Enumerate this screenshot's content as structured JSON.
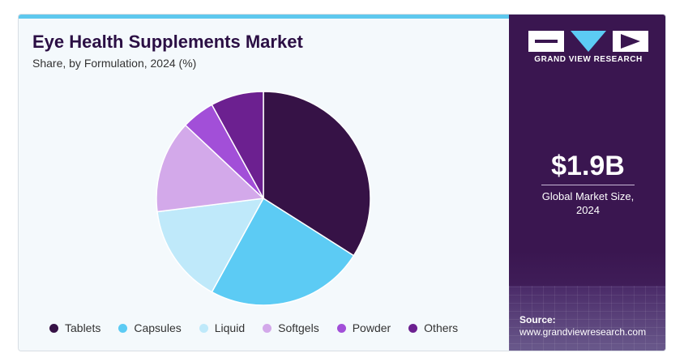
{
  "header": {
    "title": "Eye Health Supplements Market",
    "subtitle": "Share, by Formulation, 2024 (%)"
  },
  "chart_data": {
    "type": "pie",
    "title": "Eye Health Supplements Market",
    "subtitle": "Share, by Formulation, 2024 (%)",
    "categories": [
      "Tablets",
      "Capsules",
      "Liquid",
      "Softgels",
      "Powder",
      "Others"
    ],
    "values": [
      34,
      24,
      15,
      14,
      5,
      8
    ],
    "colors": [
      "#361246",
      "#5ccbf4",
      "#bfe9fa",
      "#d3a9ea",
      "#a24fd8",
      "#6c2090"
    ],
    "legend_position": "bottom",
    "start_angle_deg": 0,
    "direction": "clockwise"
  },
  "sidebar": {
    "logo_text": "GRAND VIEW RESEARCH",
    "market_value": "$1.9B",
    "market_label_line1": "Global Market Size,",
    "market_label_line2": "2024",
    "source_label": "Source:",
    "source_url": "www.grandviewresearch.com"
  }
}
